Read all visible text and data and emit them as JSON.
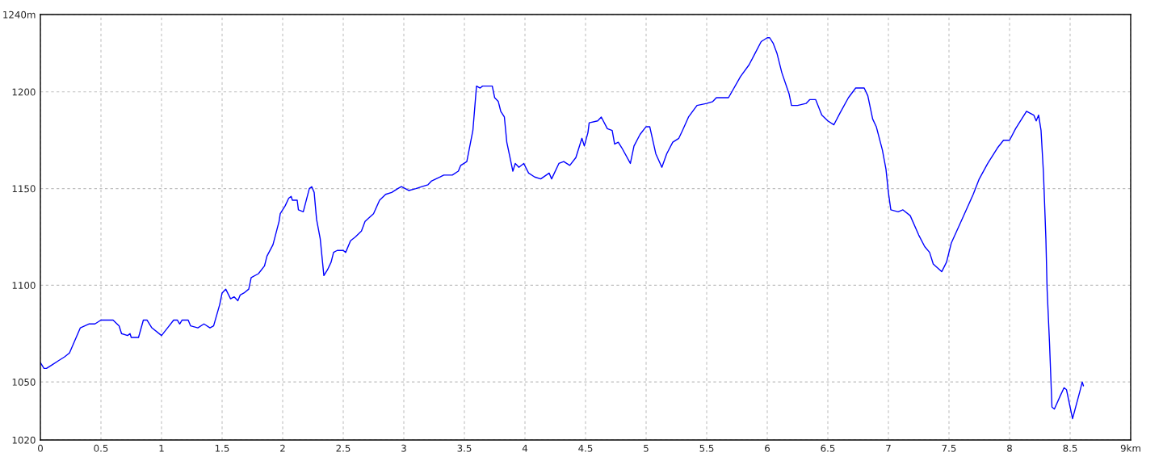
{
  "chart_data": {
    "type": "line",
    "x": [
      0,
      0.03,
      0.05,
      0.1,
      0.15,
      0.2,
      0.24,
      0.33,
      0.4,
      0.45,
      0.5,
      0.6,
      0.65,
      0.67,
      0.72,
      0.74,
      0.75,
      0.81,
      0.85,
      0.88,
      0.92,
      1.0,
      1.05,
      1.1,
      1.13,
      1.15,
      1.17,
      1.22,
      1.24,
      1.3,
      1.35,
      1.4,
      1.43,
      1.48,
      1.5,
      1.53,
      1.57,
      1.6,
      1.63,
      1.65,
      1.68,
      1.72,
      1.74,
      1.8,
      1.85,
      1.87,
      1.92,
      1.97,
      1.98,
      2.02,
      2.05,
      2.07,
      2.08,
      2.12,
      2.13,
      2.17,
      2.22,
      2.24,
      2.26,
      2.28,
      2.31,
      2.34,
      2.37,
      2.4,
      2.42,
      2.45,
      2.5,
      2.52,
      2.56,
      2.6,
      2.65,
      2.68,
      2.75,
      2.8,
      2.85,
      2.9,
      2.95,
      2.98,
      3.04,
      3.1,
      3.15,
      3.2,
      3.23,
      3.3,
      3.33,
      3.4,
      3.45,
      3.47,
      3.52,
      3.57,
      3.6,
      3.63,
      3.65,
      3.73,
      3.75,
      3.78,
      3.8,
      3.83,
      3.85,
      3.88,
      3.9,
      3.92,
      3.95,
      3.99,
      4.03,
      4.08,
      4.13,
      4.2,
      4.22,
      4.28,
      4.32,
      4.37,
      4.42,
      4.47,
      4.49,
      4.52,
      4.53,
      4.6,
      4.63,
      4.68,
      4.72,
      4.74,
      4.77,
      4.8,
      4.87,
      4.9,
      4.95,
      5.0,
      5.03,
      5.08,
      5.13,
      5.17,
      5.22,
      5.27,
      5.3,
      5.35,
      5.42,
      5.5,
      5.55,
      5.58,
      5.68,
      5.78,
      5.85,
      5.9,
      5.95,
      6.0,
      6.02,
      6.05,
      6.08,
      6.12,
      6.18,
      6.2,
      6.25,
      6.32,
      6.35,
      6.4,
      6.45,
      6.5,
      6.55,
      6.6,
      6.67,
      6.73,
      6.8,
      6.83,
      6.87,
      6.9,
      6.95,
      6.98,
      7.0,
      7.02,
      7.08,
      7.12,
      7.18,
      7.25,
      7.3,
      7.34,
      7.37,
      7.44,
      7.48,
      7.52,
      7.6,
      7.65,
      7.7,
      7.75,
      7.82,
      7.9,
      7.95,
      8.0,
      8.05,
      8.14,
      8.2,
      8.22,
      8.24,
      8.26,
      8.28,
      8.3,
      8.31,
      8.33,
      8.35,
      8.37,
      8.42,
      8.45,
      8.47,
      8.52,
      8.58,
      8.6,
      8.61
    ],
    "series": [
      {
        "color": "#0000ff",
        "values": [
          1060,
          1057,
          1057,
          1059,
          1061,
          1063,
          1065,
          1078,
          1080,
          1080,
          1082,
          1082,
          1079,
          1075,
          1074,
          1075,
          1073,
          1073,
          1082,
          1082,
          1078,
          1074,
          1078,
          1082,
          1082,
          1080,
          1082,
          1082,
          1079,
          1078,
          1080,
          1078,
          1079,
          1090,
          1096,
          1098,
          1093,
          1094,
          1092,
          1095,
          1096,
          1098,
          1104,
          1106,
          1110,
          1115,
          1121,
          1133,
          1137,
          1141,
          1145,
          1146,
          1144,
          1144,
          1139,
          1138,
          1150,
          1151,
          1148,
          1134,
          1124,
          1105,
          1108,
          1112,
          1117,
          1118,
          1118,
          1117,
          1123,
          1125,
          1128,
          1133,
          1137,
          1144,
          1147,
          1148,
          1150,
          1151,
          1149,
          1150,
          1151,
          1152,
          1154,
          1156,
          1157,
          1157,
          1159,
          1162,
          1164,
          1180,
          1203,
          1202,
          1203,
          1203,
          1197,
          1195,
          1190,
          1187,
          1174,
          1165,
          1159,
          1163,
          1161,
          1163,
          1158,
          1156,
          1155,
          1158,
          1155,
          1163,
          1164,
          1162,
          1166,
          1176,
          1172,
          1179,
          1184,
          1185,
          1187,
          1181,
          1180,
          1173,
          1174,
          1171,
          1163,
          1172,
          1178,
          1182,
          1182,
          1168,
          1161,
          1168,
          1174,
          1176,
          1180,
          1187,
          1193,
          1194,
          1195,
          1197,
          1197,
          1208,
          1214,
          1220,
          1226,
          1228,
          1228,
          1225,
          1220,
          1210,
          1199,
          1193,
          1193,
          1194,
          1196,
          1196,
          1188,
          1185,
          1183,
          1189,
          1197,
          1202,
          1202,
          1198,
          1186,
          1182,
          1170,
          1160,
          1148,
          1139,
          1138,
          1139,
          1136,
          1126,
          1120,
          1117,
          1111,
          1107,
          1112,
          1122,
          1133,
          1140,
          1147,
          1155,
          1163,
          1171,
          1175,
          1175,
          1181,
          1190,
          1188,
          1185,
          1188,
          1180,
          1158,
          1124,
          1098,
          1070,
          1037,
          1036,
          1043,
          1047,
          1046,
          1031,
          1045,
          1050,
          1048
        ]
      }
    ],
    "xlim": [
      0,
      9
    ],
    "xticks": [
      0,
      0.5,
      1,
      1.5,
      2,
      2.5,
      3,
      3.5,
      4,
      4.5,
      5,
      5.5,
      6,
      6.5,
      7,
      7.5,
      8,
      8.5,
      {
        "value": 9,
        "label": "9km"
      }
    ],
    "ylim": [
      1020,
      1240
    ],
    "yticks": [
      1020,
      1050,
      1100,
      1150,
      1200,
      {
        "value": 1240,
        "label": "1240m"
      }
    ],
    "grid": true,
    "marker": "none",
    "line_style": "solid"
  }
}
